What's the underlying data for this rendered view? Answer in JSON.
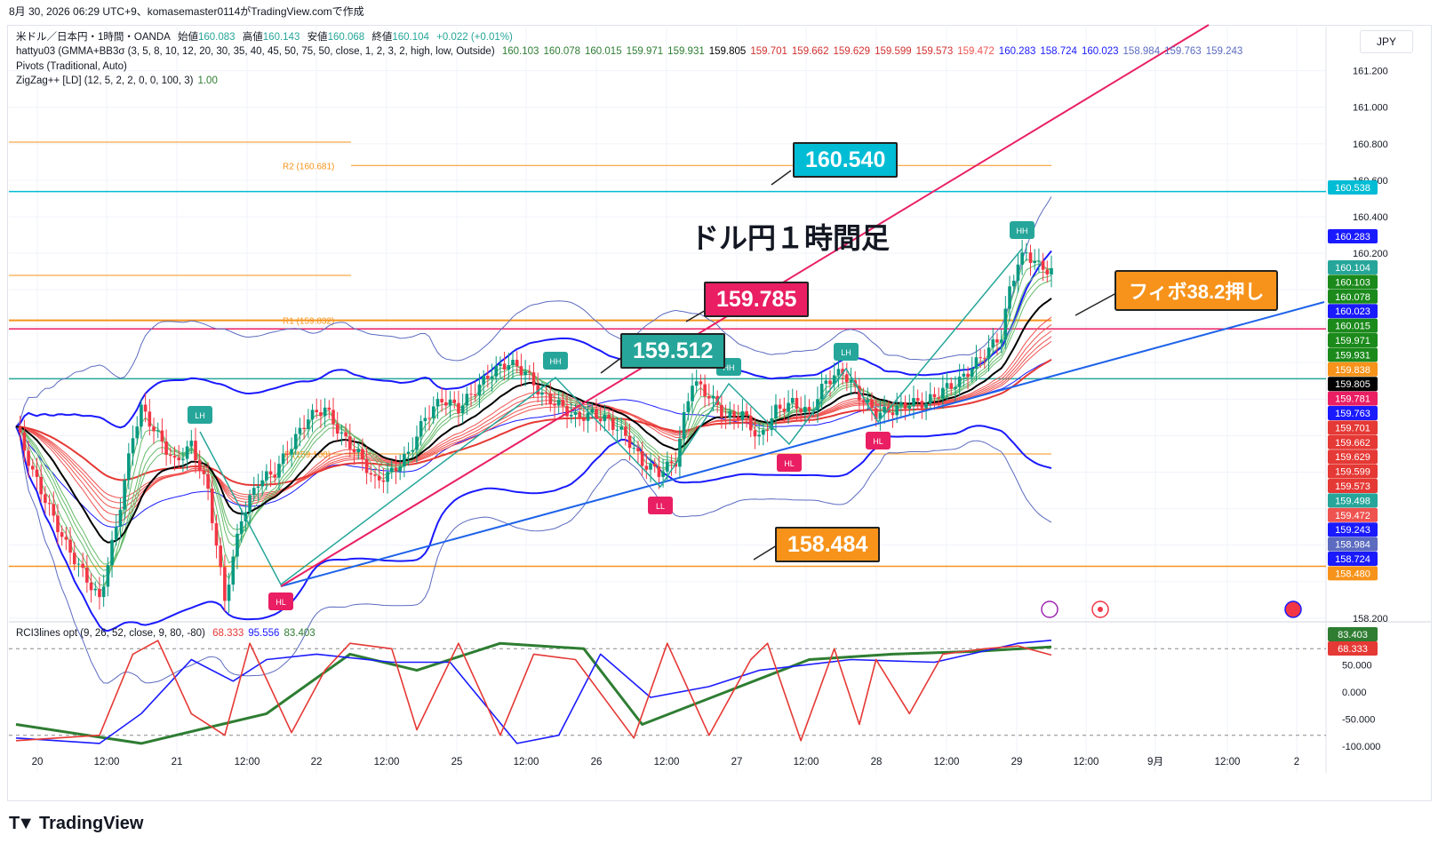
{
  "header": {
    "timestamp_text": "8月 30, 2026 06:29 UTC+9、komasemaster0114がTradingView.comで作成"
  },
  "legend": {
    "symbol_line": "米ドル／日本円・1時間・OANDA",
    "open_label": "始値",
    "open": "160.083",
    "high_label": "高値",
    "high": "160.143",
    "low_label": "安値",
    "low": "160.068",
    "close_label": "終値",
    "close": "160.104",
    "change": "+0.022 (+0.01%)",
    "indicator1": "hattyu03 (GMMA+BB3σ (3, 5, 8, 10, 12, 20, 30, 35, 40, 45, 50, 75, 50, close, 1, 2, 3, 2, high, low, Outside)",
    "indicator1_values": [
      {
        "v": "160.103",
        "c": "#2e7d32"
      },
      {
        "v": "160.078",
        "c": "#2e7d32"
      },
      {
        "v": "160.015",
        "c": "#2e7d32"
      },
      {
        "v": "159.971",
        "c": "#2e7d32"
      },
      {
        "v": "159.931",
        "c": "#2e7d32"
      },
      {
        "v": "159.805",
        "c": "#000000"
      },
      {
        "v": "159.701",
        "c": "#d32f2f"
      },
      {
        "v": "159.662",
        "c": "#d32f2f"
      },
      {
        "v": "159.629",
        "c": "#d32f2f"
      },
      {
        "v": "159.599",
        "c": "#d32f2f"
      },
      {
        "v": "159.573",
        "c": "#d32f2f"
      },
      {
        "v": "159.472",
        "c": "#ef5350"
      },
      {
        "v": "160.283",
        "c": "#1a1aff"
      },
      {
        "v": "158.724",
        "c": "#1a1aff"
      },
      {
        "v": "160.023",
        "c": "#1a1aff"
      },
      {
        "v": "158.984",
        "c": "#5c6bc0"
      },
      {
        "v": "159.763",
        "c": "#5c6bc0"
      },
      {
        "v": "159.243",
        "c": "#5c6bc0"
      }
    ],
    "indicator2": "Pivots (Traditional, Auto)",
    "indicator3": "ZigZag++ [LD] (12, 5, 2, 2, 0, 0, 100, 3)",
    "indicator3_value": "1.00",
    "rci_label": "RCI3lines opt (9, 26, 52, close, 9, 80, -80)",
    "rci_values": [
      {
        "v": "68.333",
        "c": "#e53935"
      },
      {
        "v": "95.556",
        "c": "#1a1aff"
      },
      {
        "v": "83.403",
        "c": "#2e7d32"
      }
    ]
  },
  "currency_button": "JPY",
  "title_text": "ドル円１時間足",
  "fibo_text": "フィボ38.2押し",
  "callouts": [
    {
      "text": "160.540",
      "color": "#00bcd4"
    },
    {
      "text": "159.785",
      "color": "#e91e63"
    },
    {
      "text": "159.512",
      "color": "#26a69a"
    },
    {
      "text": "158.484",
      "color": "#f7931a"
    }
  ],
  "pivot_labels": {
    "r2": "R2 (160.681)",
    "r1": "R1 (159.832)",
    "p": "P (159.100)"
  },
  "zigzag_labels": [
    "LH",
    "HH",
    "HH",
    "LH",
    "HH",
    "HL",
    "LL",
    "HL",
    "HL"
  ],
  "price_tags": [
    {
      "v": "160.538",
      "c": "#00bcd4"
    },
    {
      "v": "160.283",
      "c": "#1a1aff"
    },
    {
      "v": "160.104",
      "c": "#26a69a"
    },
    {
      "v": "160.103",
      "c": "#1b8a1b"
    },
    {
      "v": "160.078",
      "c": "#1b8a1b"
    },
    {
      "v": "160.023",
      "c": "#1a1aff"
    },
    {
      "v": "160.015",
      "c": "#1b8a1b"
    },
    {
      "v": "159.971",
      "c": "#1b8a1b"
    },
    {
      "v": "159.931",
      "c": "#1b8a1b"
    },
    {
      "v": "159.838",
      "c": "#f7931a"
    },
    {
      "v": "159.805",
      "c": "#000000"
    },
    {
      "v": "159.781",
      "c": "#e91e63"
    },
    {
      "v": "159.763",
      "c": "#1a1aff"
    },
    {
      "v": "159.701",
      "c": "#e53935"
    },
    {
      "v": "159.662",
      "c": "#e53935"
    },
    {
      "v": "159.629",
      "c": "#e53935"
    },
    {
      "v": "159.599",
      "c": "#e53935"
    },
    {
      "v": "159.573",
      "c": "#e53935"
    },
    {
      "v": "159.498",
      "c": "#26a69a"
    },
    {
      "v": "159.472",
      "c": "#ef5350"
    },
    {
      "v": "159.243",
      "c": "#1a1aff"
    },
    {
      "v": "158.984",
      "c": "#5c6bc0"
    },
    {
      "v": "158.724",
      "c": "#1a1aff"
    },
    {
      "v": "158.480",
      "c": "#f7931a"
    }
  ],
  "rci_tags": [
    {
      "v": "83.403",
      "c": "#2e7d32"
    },
    {
      "v": "68.333",
      "c": "#e53935"
    }
  ],
  "chart_data": {
    "type": "candlestick",
    "symbol": "米ドル／日本円",
    "timeframe": "1時間",
    "y_axis_ticks": [
      "161.200",
      "161.000",
      "160.800",
      "160.600",
      "160.400",
      "160.200",
      "158.200"
    ],
    "ylim": [
      158.18,
      161.32
    ],
    "x_axis_ticks": [
      "20",
      "12:00",
      "21",
      "12:00",
      "22",
      "12:00",
      "25",
      "12:00",
      "26",
      "12:00",
      "27",
      "12:00",
      "28",
      "12:00",
      "29",
      "12:00",
      "9月",
      "12:00",
      "2"
    ],
    "horizontal_levels": [
      {
        "name": "R2",
        "value": 160.681
      },
      {
        "name": "R1",
        "value": 159.832
      },
      {
        "name": "P",
        "value": 159.1
      },
      {
        "name": "line-160.538",
        "value": 160.538
      },
      {
        "name": "line-159.785",
        "value": 159.785
      },
      {
        "name": "line-159.512",
        "value": 159.512
      },
      {
        "name": "line-158.484",
        "value": 158.484
      }
    ],
    "price_path": [
      [
        0,
        159.25
      ],
      [
        4,
        159.0
      ],
      [
        8,
        158.8
      ],
      [
        12,
        158.6
      ],
      [
        16,
        158.45
      ],
      [
        20,
        158.3
      ],
      [
        24,
        158.7
      ],
      [
        28,
        159.2
      ],
      [
        30,
        159.35
      ],
      [
        34,
        159.2
      ],
      [
        38,
        159.05
      ],
      [
        42,
        159.15
      ],
      [
        46,
        158.9
      ],
      [
        50,
        158.3
      ],
      [
        54,
        158.75
      ],
      [
        58,
        158.95
      ],
      [
        62,
        159.0
      ],
      [
        66,
        159.15
      ],
      [
        70,
        159.3
      ],
      [
        74,
        159.35
      ],
      [
        78,
        159.2
      ],
      [
        82,
        159.1
      ],
      [
        86,
        158.95
      ],
      [
        90,
        159.0
      ],
      [
        94,
        159.1
      ],
      [
        98,
        159.3
      ],
      [
        102,
        159.4
      ],
      [
        106,
        159.35
      ],
      [
        110,
        159.45
      ],
      [
        114,
        159.55
      ],
      [
        118,
        159.6
      ],
      [
        122,
        159.55
      ],
      [
        126,
        159.42
      ],
      [
        130,
        159.37
      ],
      [
        134,
        159.3
      ],
      [
        138,
        159.32
      ],
      [
        142,
        159.28
      ],
      [
        146,
        159.2
      ],
      [
        150,
        159.05
      ],
      [
        154,
        159.0
      ],
      [
        158,
        159.06
      ],
      [
        160,
        159.3
      ],
      [
        162,
        159.5
      ],
      [
        166,
        159.42
      ],
      [
        170,
        159.3
      ],
      [
        174,
        159.32
      ],
      [
        178,
        159.18
      ],
      [
        182,
        159.34
      ],
      [
        186,
        159.38
      ],
      [
        190,
        159.32
      ],
      [
        194,
        159.5
      ],
      [
        198,
        159.55
      ],
      [
        202,
        159.42
      ],
      [
        206,
        159.32
      ],
      [
        210,
        159.34
      ],
      [
        214,
        159.38
      ],
      [
        218,
        159.38
      ],
      [
        222,
        159.45
      ],
      [
        226,
        159.5
      ],
      [
        230,
        159.6
      ],
      [
        234,
        159.7
      ],
      [
        236,
        159.75
      ],
      [
        238,
        160.0
      ],
      [
        240,
        160.15
      ],
      [
        242,
        160.2
      ],
      [
        245,
        160.13
      ],
      [
        248,
        160.1
      ]
    ],
    "rci": {
      "ylim": [
        -110,
        110
      ],
      "ticks": [
        "50.000",
        "0.000",
        "-50.000",
        "-100.000"
      ],
      "levels": [
        80,
        -80
      ],
      "short_red": [
        [
          0,
          -90
        ],
        [
          20,
          -80
        ],
        [
          28,
          70
        ],
        [
          34,
          95
        ],
        [
          42,
          -40
        ],
        [
          50,
          -80
        ],
        [
          56,
          90
        ],
        [
          66,
          -75
        ],
        [
          74,
          40
        ],
        [
          80,
          90
        ],
        [
          90,
          80
        ],
        [
          96,
          -70
        ],
        [
          106,
          90
        ],
        [
          116,
          -80
        ],
        [
          124,
          70
        ],
        [
          134,
          60
        ],
        [
          148,
          -85
        ],
        [
          156,
          90
        ],
        [
          166,
          -80
        ],
        [
          176,
          60
        ],
        [
          180,
          90
        ],
        [
          188,
          -90
        ],
        [
          196,
          80
        ],
        [
          202,
          -60
        ],
        [
          206,
          60
        ],
        [
          214,
          -40
        ],
        [
          222,
          70
        ],
        [
          232,
          80
        ],
        [
          240,
          85
        ],
        [
          248,
          68.333
        ]
      ],
      "mid_blue": [
        [
          0,
          -85
        ],
        [
          20,
          -95
        ],
        [
          30,
          -40
        ],
        [
          42,
          60
        ],
        [
          52,
          20
        ],
        [
          60,
          60
        ],
        [
          72,
          70
        ],
        [
          90,
          55
        ],
        [
          104,
          55
        ],
        [
          120,
          -95
        ],
        [
          130,
          -80
        ],
        [
          140,
          70
        ],
        [
          152,
          -10
        ],
        [
          166,
          10
        ],
        [
          178,
          40
        ],
        [
          200,
          60
        ],
        [
          220,
          55
        ],
        [
          240,
          90
        ],
        [
          248,
          95.556
        ]
      ],
      "long_green": [
        [
          0,
          -60
        ],
        [
          30,
          -95
        ],
        [
          60,
          -40
        ],
        [
          80,
          70
        ],
        [
          96,
          40
        ],
        [
          116,
          90
        ],
        [
          136,
          80
        ],
        [
          150,
          -60
        ],
        [
          170,
          0
        ],
        [
          190,
          60
        ],
        [
          210,
          70
        ],
        [
          230,
          75
        ],
        [
          248,
          83.403
        ]
      ]
    }
  }
}
